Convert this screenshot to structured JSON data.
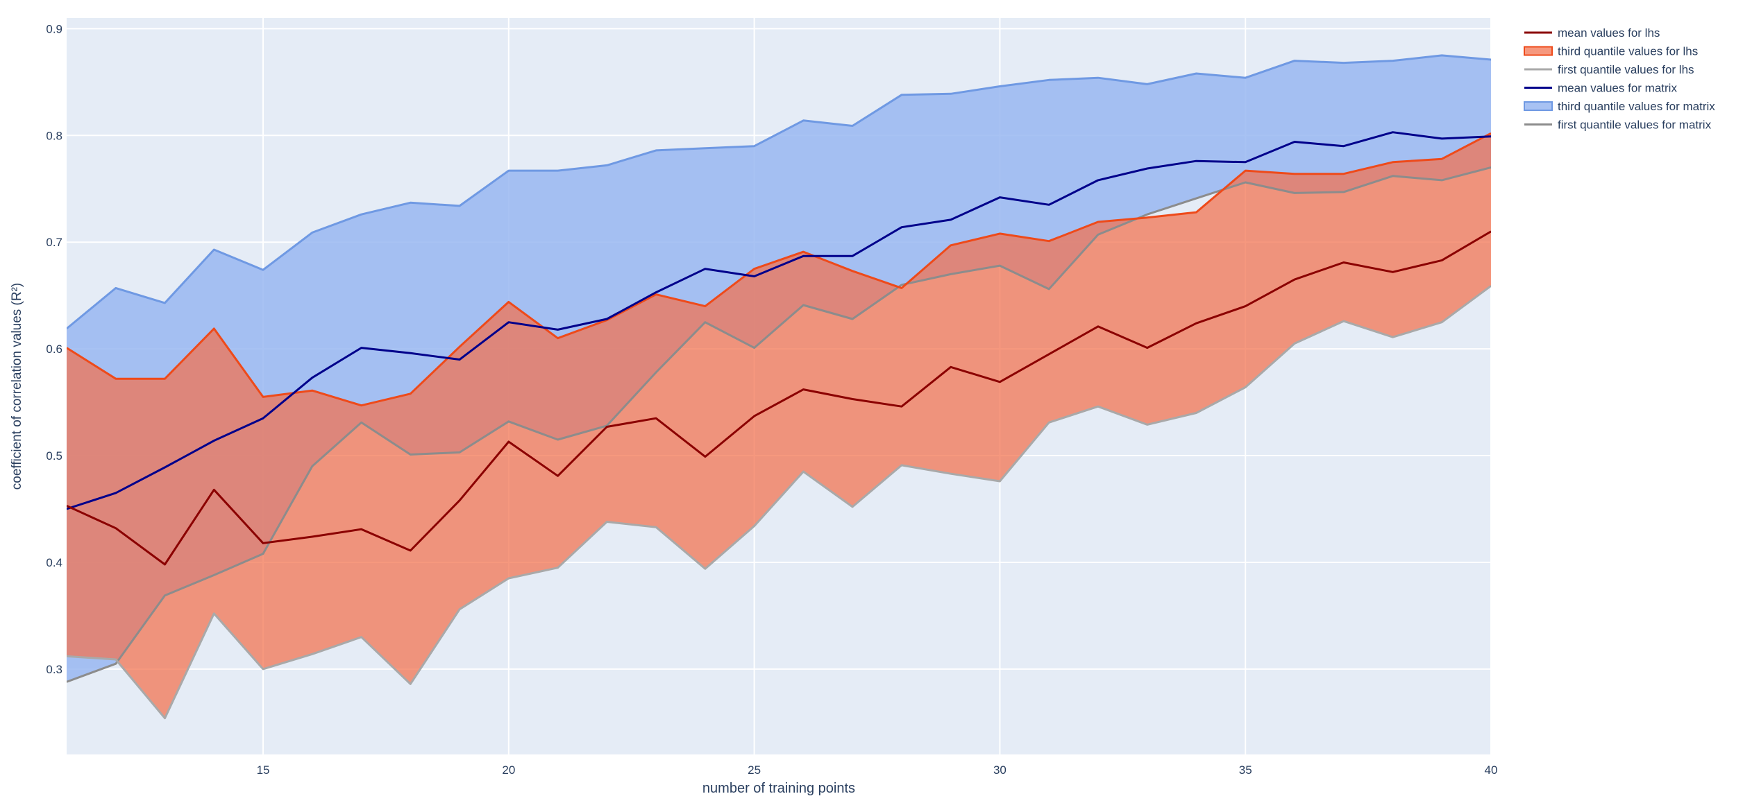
{
  "chart_data": {
    "type": "area",
    "title": "",
    "xlabel": "number of training points",
    "ylabel": "coefficient of correlation values (R²)",
    "xlim": [
      11,
      40
    ],
    "ylim": [
      0.22,
      0.91
    ],
    "x_ticks": [
      15,
      20,
      25,
      30,
      35,
      40
    ],
    "y_ticks": [
      0.3,
      0.4,
      0.5,
      0.6,
      0.7,
      0.8,
      0.9
    ],
    "grid": true,
    "legend_position": "top-right outside",
    "x": [
      11,
      12,
      13,
      14,
      15,
      16,
      17,
      18,
      19,
      20,
      21,
      22,
      23,
      24,
      25,
      26,
      27,
      28,
      29,
      30,
      31,
      32,
      33,
      34,
      35,
      36,
      37,
      38,
      39,
      40
    ],
    "series": [
      {
        "name": "mean values for lhs",
        "kind": "line",
        "color": "#8b0000",
        "values": [
          0.453,
          0.432,
          0.398,
          0.468,
          0.418,
          0.424,
          0.431,
          0.411,
          0.458,
          0.513,
          0.481,
          0.527,
          0.535,
          0.499,
          0.537,
          0.562,
          0.553,
          0.546,
          0.583,
          0.569,
          0.595,
          0.621,
          0.601,
          0.624,
          0.64,
          0.665,
          0.681,
          0.672,
          0.683,
          0.71
        ]
      },
      {
        "name": "third quantile values for lhs",
        "kind": "band-upper",
        "color": "#ee4a1a",
        "fill": "rgba(242,112,76,0.72)",
        "values": [
          0.601,
          0.572,
          0.572,
          0.619,
          0.555,
          0.561,
          0.547,
          0.558,
          0.602,
          0.644,
          0.61,
          0.627,
          0.651,
          0.64,
          0.675,
          0.691,
          0.673,
          0.657,
          0.697,
          0.708,
          0.701,
          0.719,
          0.723,
          0.728,
          0.767,
          0.764,
          0.764,
          0.775,
          0.778,
          0.802
        ]
      },
      {
        "name": "first quantile values for lhs",
        "kind": "band-lower",
        "color": "#a9a9a9",
        "values": [
          0.312,
          0.309,
          0.254,
          0.352,
          0.3,
          0.314,
          0.33,
          0.286,
          0.356,
          0.385,
          0.395,
          0.438,
          0.433,
          0.394,
          0.434,
          0.485,
          0.452,
          0.491,
          0.483,
          0.476,
          0.531,
          0.546,
          0.529,
          0.54,
          0.564,
          0.605,
          0.626,
          0.611,
          0.625,
          0.659
        ]
      },
      {
        "name": "mean values for matrix",
        "kind": "line",
        "color": "#00008b",
        "values": [
          0.45,
          0.465,
          0.489,
          0.514,
          0.535,
          0.573,
          0.601,
          0.596,
          0.59,
          0.625,
          0.618,
          0.628,
          0.653,
          0.675,
          0.668,
          0.687,
          0.687,
          0.714,
          0.721,
          0.742,
          0.735,
          0.758,
          0.769,
          0.776,
          0.775,
          0.794,
          0.79,
          0.803,
          0.797,
          0.799
        ]
      },
      {
        "name": "third quantile values for matrix",
        "kind": "band-upper",
        "color": "#6f99e3",
        "fill": "rgba(149,181,240,0.82)",
        "values": [
          0.619,
          0.657,
          0.643,
          0.693,
          0.674,
          0.709,
          0.726,
          0.737,
          0.734,
          0.767,
          0.767,
          0.772,
          0.786,
          0.788,
          0.79,
          0.814,
          0.809,
          0.838,
          0.839,
          0.846,
          0.852,
          0.854,
          0.848,
          0.858,
          0.854,
          0.87,
          0.868,
          0.87,
          0.875,
          0.871
        ]
      },
      {
        "name": "first quantile values for matrix",
        "kind": "band-lower",
        "color": "#8c8c8c",
        "values": [
          0.288,
          0.305,
          0.369,
          0.388,
          0.408,
          0.49,
          0.531,
          0.501,
          0.503,
          0.532,
          0.515,
          0.528,
          0.578,
          0.625,
          0.601,
          0.641,
          0.628,
          0.66,
          0.67,
          0.678,
          0.656,
          0.707,
          0.726,
          0.741,
          0.756,
          0.746,
          0.747,
          0.762,
          0.758,
          0.77
        ]
      }
    ]
  }
}
